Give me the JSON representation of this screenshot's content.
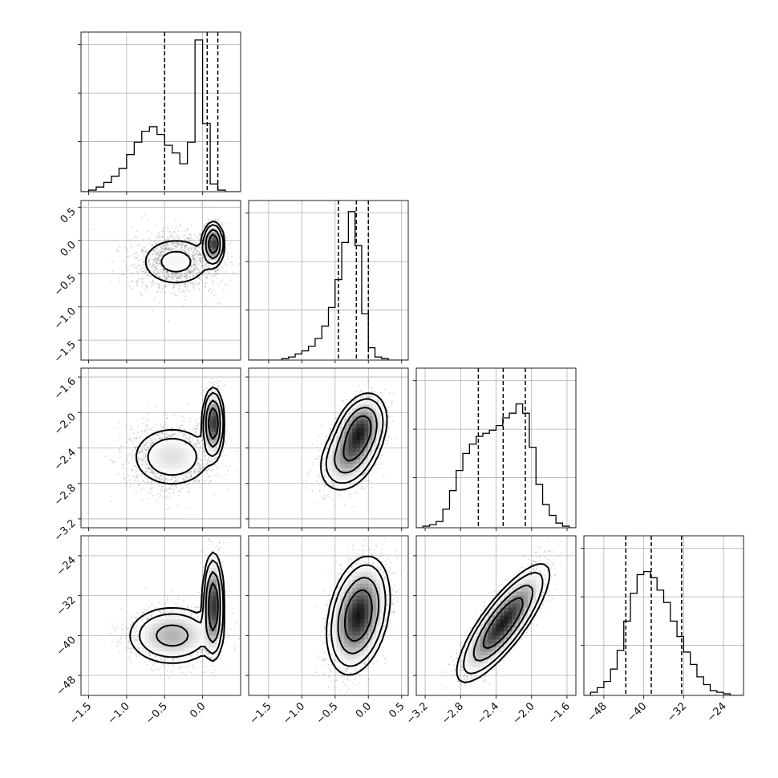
{
  "chart_data": {
    "type": "corner",
    "parameters": [
      {
        "index": 0,
        "range": [
          -1.6,
          0.5
        ],
        "ticks": [
          -1.5,
          -1.0,
          -0.5,
          0.0
        ],
        "tick_labels": [
          "−1.5",
          "−1.0",
          "−0.5",
          "0.0"
        ],
        "quantiles": [
          -0.5,
          0.06,
          0.2
        ],
        "histogram": {
          "bin_start": -1.6,
          "bin_width": 0.1,
          "heights": [
            0.0,
            0.01,
            0.03,
            0.06,
            0.1,
            0.15,
            0.24,
            0.32,
            0.39,
            0.42,
            0.37,
            0.3,
            0.25,
            0.18,
            0.32,
            0.98,
            0.44,
            0.05,
            0.01,
            0.0,
            0.0
          ]
        }
      },
      {
        "index": 1,
        "range": [
          -1.8,
          0.6
        ],
        "ticks": [
          -1.5,
          -1.0,
          -0.5,
          0.0,
          0.5
        ],
        "tick_labels": [
          "−1.5",
          "−1.0",
          "−0.5",
          "0.0",
          "0.5"
        ],
        "quantiles": [
          -0.45,
          -0.18,
          0.0
        ],
        "histogram": {
          "bin_start": -1.8,
          "bin_width": 0.1,
          "heights": [
            0.0,
            0.0,
            0.0,
            0.0,
            0.0,
            0.01,
            0.02,
            0.04,
            0.06,
            0.09,
            0.14,
            0.22,
            0.34,
            0.52,
            0.76,
            0.96,
            0.74,
            0.3,
            0.08,
            0.02,
            0.01,
            0.0,
            0.0,
            0.0
          ]
        }
      },
      {
        "index": 2,
        "range": [
          -3.3,
          -1.5
        ],
        "ticks": [
          -3.2,
          -2.8,
          -2.4,
          -2.0,
          -1.6
        ],
        "tick_labels": [
          "−3.2",
          "−2.8",
          "−2.4",
          "−2.0",
          "−1.6"
        ],
        "quantiles": [
          -2.6,
          -2.32,
          -2.07
        ],
        "histogram": {
          "bin_start": -3.3,
          "bin_width": 0.075,
          "heights": [
            0.0,
            0.01,
            0.02,
            0.04,
            0.12,
            0.24,
            0.37,
            0.48,
            0.54,
            0.59,
            0.61,
            0.63,
            0.66,
            0.71,
            0.74,
            0.8,
            0.74,
            0.52,
            0.28,
            0.15,
            0.08,
            0.03,
            0.01,
            0.0
          ]
        }
      },
      {
        "index": 3,
        "range": [
          -52,
          -20
        ],
        "ticks": [
          -48,
          -40,
          -32,
          -24
        ],
        "tick_labels": [
          "−48",
          "−40",
          "−32",
          "−24"
        ],
        "quantiles": [
          -43.6,
          -38.5,
          -32.4
        ],
        "histogram": {
          "bin_start": -52,
          "bin_width": 1.333,
          "heights": [
            0.0,
            0.02,
            0.05,
            0.09,
            0.17,
            0.29,
            0.48,
            0.66,
            0.78,
            0.8,
            0.76,
            0.68,
            0.6,
            0.48,
            0.38,
            0.28,
            0.2,
            0.12,
            0.07,
            0.03,
            0.02,
            0.01,
            0.0,
            0.0
          ]
        }
      }
    ],
    "y_ticks": {
      "1": {
        "ticks": [
          0.5,
          0.0,
          -0.5,
          -1.0,
          -1.5
        ],
        "tick_labels": [
          "0.5",
          "0.0",
          "−0.5",
          "−1.0",
          "−1.5"
        ]
      },
      "2": {
        "ticks": [
          -1.6,
          -2.0,
          -2.4,
          -2.8,
          -3.2
        ],
        "tick_labels": [
          "−1.6",
          "−2.0",
          "−2.4",
          "−2.8",
          "−3.2"
        ]
      },
      "3": {
        "ticks": [
          -24,
          -32,
          -40,
          -48
        ],
        "tick_labels": [
          "−24",
          "−32",
          "−40",
          "−48"
        ]
      }
    },
    "joint_modes": [
      {
        "pair": [
          0,
          1
        ],
        "modes": [
          {
            "mean": [
              -0.35,
              -0.32
            ],
            "sd": [
              0.28,
              0.22
            ],
            "rho": 0.0,
            "weight": 0.55
          },
          {
            "mean": [
              0.14,
              -0.05
            ],
            "sd": [
              0.06,
              0.14
            ],
            "rho": 0.0,
            "weight": 0.45
          }
        ]
      },
      {
        "pair": [
          0,
          2
        ],
        "modes": [
          {
            "mean": [
              -0.4,
              -2.5
            ],
            "sd": [
              0.28,
              0.18
            ],
            "rho": 0.0,
            "weight": 0.55
          },
          {
            "mean": [
              0.14,
              -2.12
            ],
            "sd": [
              0.06,
              0.17
            ],
            "rho": 0.0,
            "weight": 0.45
          }
        ]
      },
      {
        "pair": [
          0,
          3
        ],
        "modes": [
          {
            "mean": [
              -0.4,
              -40
            ],
            "sd": [
              0.28,
              2.8
            ],
            "rho": 0.0,
            "weight": 0.55
          },
          {
            "mean": [
              0.14,
              -34
            ],
            "sd": [
              0.06,
              4.5
            ],
            "rho": 0.0,
            "weight": 0.45
          }
        ]
      },
      {
        "pair": [
          1,
          2
        ],
        "modes": [
          {
            "mean": [
              -0.12,
              -2.2
            ],
            "sd": [
              0.17,
              0.18
            ],
            "rho": 0.3,
            "weight": 0.6
          },
          {
            "mean": [
              -0.3,
              -2.5
            ],
            "sd": [
              0.2,
              0.18
            ],
            "rho": 0.3,
            "weight": 0.4
          }
        ]
      },
      {
        "pair": [
          1,
          3
        ],
        "modes": [
          {
            "mean": [
              -0.15,
              -36
            ],
            "sd": [
              0.2,
              5.0
            ],
            "rho": 0.3,
            "weight": 1.0
          }
        ]
      },
      {
        "pair": [
          2,
          3
        ],
        "modes": [
          {
            "mean": [
              -2.32,
              -37.5
            ],
            "sd": [
              0.22,
              5.0
            ],
            "rho": 0.82,
            "weight": 1.0
          }
        ]
      }
    ],
    "grid": true,
    "legend": "none"
  }
}
